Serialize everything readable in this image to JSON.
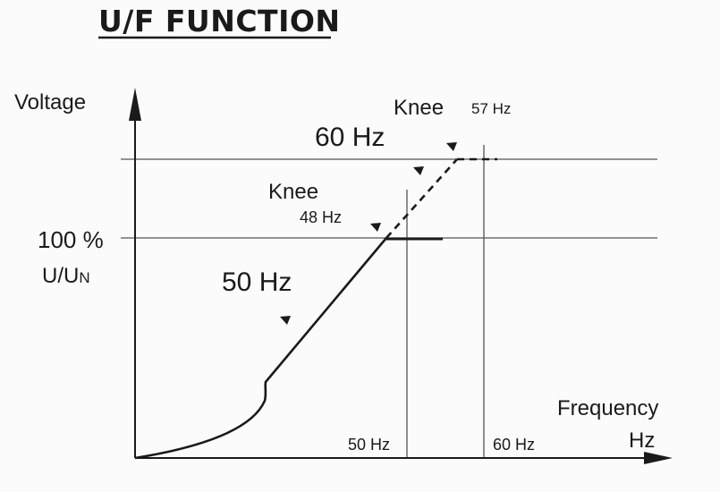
{
  "title": "U/F FUNCTION",
  "axes": {
    "y_label": "Voltage",
    "x_label_line1": "Frequency",
    "x_label_line2": "Hz"
  },
  "voltage_level": {
    "label_line1": "100 %",
    "label_u": "U/U",
    "label_sub": "N"
  },
  "curves": {
    "curve_50": {
      "label": "50 Hz"
    },
    "curve_60": {
      "label": "60 Hz"
    }
  },
  "knees": {
    "knee_48": {
      "label": "Knee",
      "freq_label": "48 Hz"
    },
    "knee_57": {
      "label": "Knee",
      "freq_label": "57 Hz"
    }
  },
  "frequency_markers": {
    "f50": "50 Hz",
    "f60": "60 Hz"
  },
  "colors": {
    "ink": "#1a1a1a",
    "grid": "#555555",
    "background": "#fbfbfb"
  }
}
